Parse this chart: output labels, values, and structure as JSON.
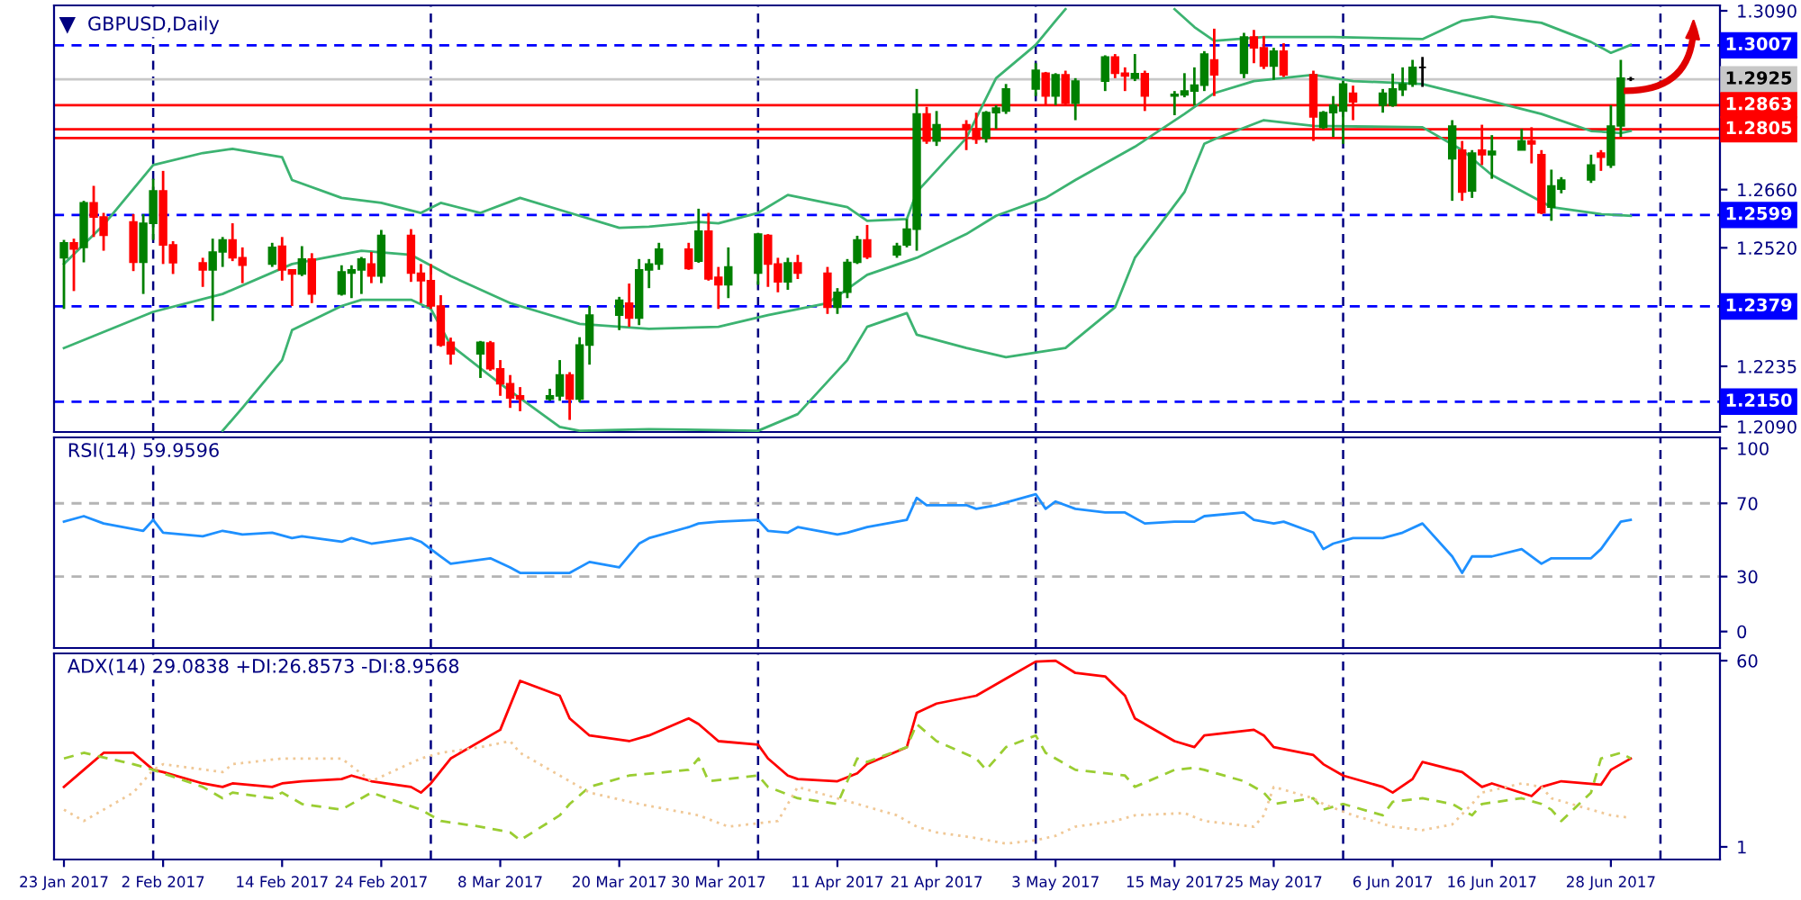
{
  "chart_data": [
    {
      "type": "candlestick",
      "title": "GBPUSD,Daily",
      "x": [
        "2017-01-23",
        "2017-01-24",
        "2017-01-25",
        "2017-01-26",
        "2017-01-27",
        "2017-01-30",
        "2017-01-31",
        "2017-02-01",
        "2017-02-02",
        "2017-02-03",
        "2017-02-06",
        "2017-02-07",
        "2017-02-08",
        "2017-02-09",
        "2017-02-10",
        "2017-02-13",
        "2017-02-14",
        "2017-02-15",
        "2017-02-16",
        "2017-02-17",
        "2017-02-20",
        "2017-02-21",
        "2017-02-22",
        "2017-02-23",
        "2017-02-24",
        "2017-02-27",
        "2017-02-28",
        "2017-03-01",
        "2017-03-02",
        "2017-03-03",
        "2017-03-06",
        "2017-03-07",
        "2017-03-08",
        "2017-03-09",
        "2017-03-10",
        "2017-03-13",
        "2017-03-14",
        "2017-03-15",
        "2017-03-16",
        "2017-03-17",
        "2017-03-20",
        "2017-03-21",
        "2017-03-22",
        "2017-03-23",
        "2017-03-24",
        "2017-03-27",
        "2017-03-28",
        "2017-03-29",
        "2017-03-30",
        "2017-03-31",
        "2017-04-03",
        "2017-04-04",
        "2017-04-05",
        "2017-04-06",
        "2017-04-07",
        "2017-04-10",
        "2017-04-11",
        "2017-04-12",
        "2017-04-13",
        "2017-04-14",
        "2017-04-17",
        "2017-04-18",
        "2017-04-19",
        "2017-04-20",
        "2017-04-21",
        "2017-04-24",
        "2017-04-25",
        "2017-04-26",
        "2017-04-27",
        "2017-04-28",
        "2017-05-01",
        "2017-05-02",
        "2017-05-03",
        "2017-05-04",
        "2017-05-05",
        "2017-05-08",
        "2017-05-09",
        "2017-05-10",
        "2017-05-11",
        "2017-05-12",
        "2017-05-15",
        "2017-05-16",
        "2017-05-17",
        "2017-05-18",
        "2017-05-19",
        "2017-05-22",
        "2017-05-23",
        "2017-05-24",
        "2017-05-25",
        "2017-05-26",
        "2017-05-29",
        "2017-05-30",
        "2017-05-31",
        "2017-06-01",
        "2017-06-02",
        "2017-06-05",
        "2017-06-06",
        "2017-06-07",
        "2017-06-08",
        "2017-06-09",
        "2017-06-12",
        "2017-06-13",
        "2017-06-14",
        "2017-06-15",
        "2017-06-16",
        "2017-06-19",
        "2017-06-20",
        "2017-06-21",
        "2017-06-22",
        "2017-06-23",
        "2017-06-26",
        "2017-06-27",
        "2017-06-28",
        "2017-06-29",
        "2017-06-30"
      ],
      "ohlc": [
        [
          1.2496,
          1.2539,
          1.2373,
          1.2532
        ],
        [
          1.2532,
          1.2542,
          1.2416,
          1.2517
        ],
        [
          1.2521,
          1.2633,
          1.2485,
          1.2628
        ],
        [
          1.2628,
          1.2669,
          1.2546,
          1.2594
        ],
        [
          1.2594,
          1.2604,
          1.2513,
          1.255
        ],
        [
          1.2582,
          1.2601,
          1.2464,
          1.2485
        ],
        [
          1.2485,
          1.2601,
          1.2409,
          1.2579
        ],
        [
          1.2579,
          1.2686,
          1.2539,
          1.2657
        ],
        [
          1.2657,
          1.2705,
          1.2481,
          1.2527
        ],
        [
          1.2527,
          1.2536,
          1.2457,
          1.2484
        ],
        [
          1.2484,
          1.2496,
          1.2426,
          1.2467
        ],
        [
          1.2467,
          1.2542,
          1.2344,
          1.251
        ],
        [
          1.251,
          1.2546,
          1.2474,
          1.2539
        ],
        [
          1.2539,
          1.2579,
          1.2488,
          1.2496
        ],
        [
          1.2496,
          1.2521,
          1.2435,
          1.2478
        ],
        [
          1.2481,
          1.2532,
          1.2474,
          1.2521
        ],
        [
          1.2524,
          1.2546,
          1.2441,
          1.2467
        ],
        [
          1.2467,
          1.2467,
          1.238,
          1.2457
        ],
        [
          1.2457,
          1.2524,
          1.2452,
          1.2493
        ],
        [
          1.2493,
          1.2507,
          1.2387,
          1.2409
        ],
        [
          1.2409,
          1.2478,
          1.2405,
          1.2462
        ],
        [
          1.2459,
          1.2478,
          1.2399,
          1.2467
        ],
        [
          1.2467,
          1.2498,
          1.2409,
          1.2493
        ],
        [
          1.2481,
          1.251,
          1.2435,
          1.2452
        ],
        [
          1.2452,
          1.2563,
          1.2435,
          1.255
        ],
        [
          1.255,
          1.2565,
          1.2438,
          1.2459
        ],
        [
          1.2459,
          1.2481,
          1.2387,
          1.2441
        ],
        [
          1.2441,
          1.2481,
          1.2373,
          1.238
        ],
        [
          1.238,
          1.2406,
          1.2282,
          1.2286
        ],
        [
          1.2293,
          1.2304,
          1.2239,
          1.2265
        ],
        [
          1.2265,
          1.2296,
          1.2207,
          1.2293
        ],
        [
          1.2291,
          1.2296,
          1.2224,
          1.2229
        ],
        [
          1.2229,
          1.225,
          1.2164,
          1.2193
        ],
        [
          1.2193,
          1.2214,
          1.2135,
          1.2159
        ],
        [
          1.2164,
          1.2185,
          1.2127,
          1.2156
        ],
        [
          1.2156,
          1.2181,
          1.2152,
          1.2164
        ],
        [
          1.2164,
          1.225,
          1.2152,
          1.2214
        ],
        [
          1.2214,
          1.2221,
          1.2106,
          1.2156
        ],
        [
          1.2156,
          1.2305,
          1.2149,
          1.2286
        ],
        [
          1.2286,
          1.238,
          1.2239,
          1.2358
        ],
        [
          1.2358,
          1.2402,
          1.2322,
          1.2394
        ],
        [
          1.2387,
          1.2434,
          1.233,
          1.2351
        ],
        [
          1.2351,
          1.2493,
          1.2334,
          1.2467
        ],
        [
          1.2467,
          1.2493,
          1.2423,
          1.2481
        ],
        [
          1.2481,
          1.2532,
          1.2467,
          1.2517
        ],
        [
          1.2517,
          1.2532,
          1.2467,
          1.247
        ],
        [
          1.2488,
          1.2614,
          1.2484,
          1.256
        ],
        [
          1.256,
          1.2604,
          1.2441,
          1.2445
        ],
        [
          1.2449,
          1.2474,
          1.2373,
          1.2431
        ],
        [
          1.2431,
          1.2521,
          1.2399,
          1.2474
        ],
        [
          1.2459,
          1.2556,
          1.2431,
          1.2553
        ],
        [
          1.255,
          1.2553,
          1.2426,
          1.2481
        ],
        [
          1.2481,
          1.2496,
          1.2413,
          1.2438
        ],
        [
          1.2438,
          1.2496,
          1.2419,
          1.2484
        ],
        [
          1.2484,
          1.2503,
          1.2445,
          1.2459
        ],
        [
          1.2459,
          1.2474,
          1.2361,
          1.2377
        ],
        [
          1.2377,
          1.2423,
          1.2361,
          1.2413
        ],
        [
          1.2413,
          1.2493,
          1.2399,
          1.2485
        ],
        [
          1.2485,
          1.2549,
          1.2481,
          1.2539
        ],
        [
          1.2539,
          1.2575,
          1.2493,
          1.2498
        ],
        [
          1.2503,
          1.2532,
          1.2496,
          1.2524
        ],
        [
          1.2527,
          1.2589,
          1.2521,
          1.2565
        ],
        [
          1.2565,
          1.2902,
          1.2513,
          1.2842
        ],
        [
          1.2842,
          1.2859,
          1.277,
          1.2777
        ],
        [
          1.2777,
          1.2849,
          1.2765,
          1.2816
        ],
        [
          1.2816,
          1.2827,
          1.2755,
          1.2806
        ],
        [
          1.2806,
          1.2845,
          1.277,
          1.2781
        ],
        [
          1.2784,
          1.2849,
          1.2773,
          1.2845
        ],
        [
          1.2845,
          1.2863,
          1.2806,
          1.2856
        ],
        [
          1.2849,
          1.2914,
          1.2842,
          1.2902
        ],
        [
          1.2902,
          1.2964,
          1.2885,
          1.2947
        ],
        [
          1.294,
          1.2943,
          1.2863,
          1.2885
        ],
        [
          1.2885,
          1.294,
          1.2863,
          1.2936
        ],
        [
          1.2936,
          1.2946,
          1.2863,
          1.2868
        ],
        [
          1.2868,
          1.2928,
          1.2827,
          1.2921
        ],
        [
          1.2921,
          1.2983,
          1.2897,
          1.2979
        ],
        [
          1.2979,
          1.2986,
          1.2928,
          1.294
        ],
        [
          1.294,
          1.2954,
          1.2897,
          1.2933
        ],
        [
          1.2928,
          1.2986,
          1.2921,
          1.2939
        ],
        [
          1.2939,
          1.2946,
          1.2849,
          1.2885
        ],
        [
          1.2885,
          1.2897,
          1.2839,
          1.2889
        ],
        [
          1.2888,
          1.294,
          1.2882,
          1.2897
        ],
        [
          1.2897,
          1.2954,
          1.2863,
          1.2911
        ],
        [
          1.2911,
          1.2993,
          1.2897,
          1.2986
        ],
        [
          1.2972,
          1.3047,
          1.2885,
          1.2936
        ],
        [
          1.294,
          1.3037,
          1.2928,
          1.3027
        ],
        [
          1.3027,
          1.3044,
          1.2964,
          1.3001
        ],
        [
          1.3001,
          1.3029,
          1.295,
          1.2957
        ],
        [
          1.2957,
          1.3001,
          1.2924,
          1.2993
        ],
        [
          1.2993,
          1.3012,
          1.2931,
          1.2936
        ],
        [
          1.2936,
          1.2946,
          1.2777,
          1.2835
        ],
        [
          1.281,
          1.2849,
          1.2806,
          1.2845
        ],
        [
          1.2845,
          1.2885,
          1.2787,
          1.2863
        ],
        [
          1.2849,
          1.2921,
          1.277,
          1.2914
        ],
        [
          1.2892,
          1.291,
          1.2827,
          1.2871
        ],
        [
          1.2863,
          1.2902,
          1.2845,
          1.2892
        ],
        [
          1.2863,
          1.2939,
          1.2859,
          1.2902
        ],
        [
          1.29,
          1.2954,
          1.2885,
          1.2914
        ],
        [
          1.2914,
          1.2972,
          1.2907,
          1.2954
        ],
        [
          1.2954,
          1.2979,
          1.2907,
          1.2954
        ],
        [
          1.2734,
          1.2827,
          1.2633,
          1.2813
        ],
        [
          1.2755,
          1.2777,
          1.2633,
          1.2654
        ],
        [
          1.2657,
          1.2755,
          1.264,
          1.2748
        ],
        [
          1.2755,
          1.2816,
          1.2719,
          1.2744
        ],
        [
          1.2744,
          1.2791,
          1.2686,
          1.2752
        ],
        [
          1.2755,
          1.2806,
          1.2755,
          1.2777
        ],
        [
          1.2777,
          1.281,
          1.2723,
          1.277
        ],
        [
          1.2744,
          1.2755,
          1.2601,
          1.2604
        ],
        [
          1.2618,
          1.2708,
          1.2585,
          1.2669
        ],
        [
          1.2661,
          1.269,
          1.2651,
          1.2683
        ],
        [
          1.2683,
          1.2744,
          1.2676,
          1.2719
        ],
        [
          1.2748,
          1.2755,
          1.2705,
          1.2738
        ],
        [
          1.2719,
          1.2863,
          1.2712,
          1.2813
        ],
        [
          1.2813,
          1.2972,
          1.2787,
          1.2928
        ],
        [
          1.2926,
          1.2931,
          1.2921,
          1.2926
        ]
      ],
      "colors": [
        "#008000",
        "#ff0000",
        "#008000",
        "#ff0000",
        "#ff0000",
        "#ff0000",
        "#008000",
        "#008000",
        "#ff0000",
        "#ff0000",
        "#ff0000",
        "#008000",
        "#008000",
        "#ff0000",
        "#ff0000",
        "#008000",
        "#ff0000",
        "#ff0000",
        "#008000",
        "#ff0000",
        "#008000",
        "#008000",
        "#008000",
        "#ff0000",
        "#008000",
        "#ff0000",
        "#ff0000",
        "#ff0000",
        "#ff0000",
        "#ff0000",
        "#008000",
        "#ff0000",
        "#ff0000",
        "#ff0000",
        "#ff0000",
        "#008000",
        "#008000",
        "#ff0000",
        "#008000",
        "#008000",
        "#008000",
        "#ff0000",
        "#008000",
        "#008000",
        "#008000",
        "#ff0000",
        "#008000",
        "#ff0000",
        "#ff0000",
        "#008000",
        "#008000",
        "#ff0000",
        "#ff0000",
        "#008000",
        "#ff0000",
        "#ff0000",
        "#008000",
        "#008000",
        "#008000",
        "#ff0000",
        "#008000",
        "#008000",
        "#008000",
        "#ff0000",
        "#008000",
        "#ff0000",
        "#ff0000",
        "#008000",
        "#008000",
        "#008000",
        "#008000",
        "#ff0000",
        "#008000",
        "#ff0000",
        "#008000",
        "#008000",
        "#ff0000",
        "#ff0000",
        "#008000",
        "#ff0000",
        "#008000",
        "#008000",
        "#008000",
        "#008000",
        "#ff0000",
        "#008000",
        "#ff0000",
        "#ff0000",
        "#008000",
        "#ff0000",
        "#ff0000",
        "#008000",
        "#008000",
        "#008000",
        "#ff0000",
        "#008000",
        "#008000",
        "#008000",
        "#008000",
        "#000000",
        "#008000",
        "#ff0000",
        "#008000",
        "#ff0000",
        "#008000",
        "#008000",
        "#ff0000",
        "#ff0000",
        "#008000",
        "#008000",
        "#008000",
        "#ff0000",
        "#008000",
        "#008000",
        "#000000"
      ],
      "series": [
        {
          "type": "line",
          "color": "#3cb371",
          "line_style": "solid",
          "x": [
            "2017-01-23",
            "2017-01-27",
            "2017-02-01",
            "2017-02-06",
            "2017-02-09",
            "2017-02-14",
            "2017-02-15",
            "2017-02-20",
            "2017-02-24",
            "2017-02-28",
            "2017-03-02",
            "2017-03-06",
            "2017-03-10",
            "2017-03-15",
            "2017-03-20",
            "2017-03-23",
            "2017-03-28",
            "2017-03-30",
            "2017-04-03",
            "2017-04-06",
            "2017-04-12",
            "2017-04-14",
            "2017-04-18",
            "2017-04-19",
            "2017-04-24",
            "2017-04-27",
            "2017-05-01",
            "2017-05-03",
            "2017-05-04",
            "2017-05-09",
            "2017-05-15",
            "2017-05-17",
            "2017-05-19",
            "2017-05-24",
            "2017-05-31",
            "2017-06-09",
            "2017-06-13",
            "2017-06-16",
            "2017-06-21",
            "2017-06-26",
            "2017-06-28",
            "2017-06-30"
          ],
          "values": [
            1.2481,
            1.2575,
            1.2719,
            1.2748,
            1.2758,
            1.2738,
            1.2683,
            1.264,
            1.2628,
            1.2604,
            1.2628,
            1.2604,
            1.264,
            1.2604,
            1.2568,
            1.2571,
            1.2582,
            1.2579,
            1.2604,
            1.2647,
            1.2618,
            1.2585,
            1.2589,
            1.2654,
            1.2784,
            1.2928,
            1.3008,
            1.3066,
            1.3094,
            null,
            1.3094,
            1.3051,
            1.3018,
            1.3027,
            1.3027,
            1.3022,
            1.3066,
            1.3076,
            1.3061,
            1.3015,
            1.2989,
            1.3008
          ]
        },
        {
          "type": "line",
          "color": "#3cb371",
          "line_style": "solid",
          "x": [
            "2017-01-23",
            "2017-02-01",
            "2017-02-08",
            "2017-02-15",
            "2017-02-22",
            "2017-02-27",
            "2017-03-03",
            "2017-03-09",
            "2017-03-16",
            "2017-03-23",
            "2017-03-30",
            "2017-04-04",
            "2017-04-10",
            "2017-04-14",
            "2017-04-19",
            "2017-04-24",
            "2017-04-27",
            "2017-05-02",
            "2017-05-05",
            "2017-05-11",
            "2017-05-16",
            "2017-05-19",
            "2017-05-23",
            "2017-05-29",
            "2017-06-02",
            "2017-06-09",
            "2017-06-15",
            "2017-06-21",
            "2017-06-26",
            "2017-06-29",
            "2017-06-30"
          ],
          "values": [
            1.2279,
            1.2366,
            1.2409,
            1.2481,
            1.2513,
            1.2503,
            1.2452,
            1.2387,
            1.2337,
            1.2325,
            1.233,
            1.2358,
            1.2387,
            1.2455,
            1.2496,
            1.2553,
            1.2597,
            1.264,
            1.2683,
            1.2763,
            1.2842,
            1.2892,
            1.2921,
            1.2936,
            1.2921,
            1.2914,
            1.2878,
            1.2842,
            1.2801,
            1.2796,
            1.2801
          ]
        },
        {
          "type": "line",
          "color": "#3cb371",
          "line_style": "solid",
          "x": [
            "2017-02-08",
            "2017-02-10",
            "2017-02-14",
            "2017-02-15",
            "2017-02-20",
            "2017-02-22",
            "2017-02-27",
            "2017-03-01",
            "2017-03-03",
            "2017-03-08",
            "2017-03-14",
            "2017-03-16",
            "2017-03-23",
            "2017-04-03",
            "2017-04-07",
            "2017-04-12",
            "2017-04-14",
            "2017-04-18",
            "2017-04-19",
            "2017-04-24",
            "2017-04-28",
            "2017-05-04",
            "2017-05-09",
            "2017-05-11",
            "2017-05-16",
            "2017-05-18",
            "2017-05-19",
            "2017-05-24",
            "2017-05-29",
            "2017-06-09",
            "2017-06-13",
            "2017-06-16",
            "2017-06-22",
            "2017-06-27",
            "2017-06-30"
          ],
          "values": [
            1.208,
            1.2135,
            1.225,
            1.2322,
            1.238,
            1.2395,
            1.2395,
            1.2373,
            1.2286,
            1.2193,
            1.2089,
            1.208,
            1.2084,
            1.208,
            1.212,
            1.225,
            1.233,
            1.2363,
            1.2311,
            1.2279,
            1.2257,
            1.2279,
            1.2377,
            1.2496,
            1.2654,
            1.277,
            1.2781,
            1.2827,
            1.2813,
            1.281,
            1.2755,
            1.2695,
            1.2618,
            1.2601,
            1.2597
          ]
        }
      ],
      "xlim": [
        "2017-01-22",
        "2017-07-09"
      ],
      "ylim": [
        1.2077,
        1.3103
      ],
      "yticks": [
        {
          "value": 1.309,
          "label": "1.3090"
        },
        {
          "value": 1.2945,
          "label": null
        },
        {
          "value": 1.266,
          "label": "1.2660"
        },
        {
          "value": 1.252,
          "label": "1.2520"
        },
        1.2235,
        {
          "value": 1.209,
          "label": "1.2090"
        }
      ],
      "ref_lines": [
        {
          "axis": "y",
          "value": 1.3007,
          "label": "1.3007",
          "color": "#0000ff",
          "line_style": "dashed"
        },
        {
          "axis": "y",
          "value": 1.2925,
          "label": "1.2925",
          "color": "#c8c8c8",
          "line_style": "solid"
        },
        {
          "axis": "y",
          "value": 1.2863,
          "label": "1.2863",
          "color": "#ff0000",
          "line_style": "solid"
        },
        {
          "axis": "y",
          "value": 1.2805,
          "label": "1.2805",
          "color": "#ff0000",
          "line_style": "solid"
        },
        {
          "axis": "y",
          "value": 1.2784,
          "label": null,
          "color": "#ff0000",
          "line_style": "solid"
        },
        {
          "axis": "y",
          "value": 1.2599,
          "label": "1.2599",
          "color": "#0000ff",
          "line_style": "dashed"
        },
        {
          "axis": "y",
          "value": 1.2379,
          "label": "1.2379",
          "color": "#0000ff",
          "line_style": "dashed"
        },
        {
          "axis": "y",
          "value": 1.215,
          "label": "1.2150",
          "color": "#0000ff",
          "line_style": "dashed"
        },
        {
          "axis": "x",
          "value": "2017-02-01",
          "color": "#000080",
          "line_style": "dashed"
        },
        {
          "axis": "x",
          "value": "2017-03-01",
          "color": "#000080",
          "line_style": "dashed"
        },
        {
          "axis": "x",
          "value": "2017-04-03",
          "color": "#000080",
          "line_style": "dashed"
        },
        {
          "axis": "x",
          "value": "2017-05-01",
          "color": "#000080",
          "line_style": "dashed"
        },
        {
          "axis": "x",
          "value": "2017-06-01",
          "color": "#000080",
          "line_style": "dashed"
        },
        {
          "axis": "x",
          "value": "2017-07-03",
          "color": "#000080",
          "line_style": "dashed"
        }
      ],
      "tick_labels": "y"
    },
    {
      "type": "line",
      "title": "RSI(14) 59.9596",
      "series": [
        {
          "color": "#1e90ff",
          "line_style": "solid",
          "x": [
            "2017-01-23",
            "2017-01-25",
            "2017-01-27",
            "2017-01-31",
            "2017-02-01",
            "2017-02-02",
            "2017-02-06",
            "2017-02-08",
            "2017-02-10",
            "2017-02-13",
            "2017-02-15",
            "2017-02-16",
            "2017-02-20",
            "2017-02-21",
            "2017-02-23",
            "2017-02-27",
            "2017-02-28",
            "2017-03-02",
            "2017-03-03",
            "2017-03-07",
            "2017-03-09",
            "2017-03-10",
            "2017-03-15",
            "2017-03-17",
            "2017-03-20",
            "2017-03-22",
            "2017-03-23",
            "2017-03-27",
            "2017-03-28",
            "2017-03-30",
            "2017-04-03",
            "2017-04-04",
            "2017-04-06",
            "2017-04-07",
            "2017-04-11",
            "2017-04-12",
            "2017-04-14",
            "2017-04-18",
            "2017-04-19",
            "2017-04-20",
            "2017-04-24",
            "2017-04-25",
            "2017-04-27",
            "2017-05-01",
            "2017-05-02",
            "2017-05-03",
            "2017-05-05",
            "2017-05-08",
            "2017-05-10",
            "2017-05-12",
            "2017-05-15",
            "2017-05-17",
            "2017-05-18",
            "2017-05-22",
            "2017-05-23",
            "2017-05-25",
            "2017-05-26",
            "2017-05-29",
            "2017-05-30",
            "2017-05-31",
            "2017-06-02",
            "2017-06-05",
            "2017-06-07",
            "2017-06-09",
            "2017-06-12",
            "2017-06-13",
            "2017-06-14",
            "2017-06-16",
            "2017-06-19",
            "2017-06-21",
            "2017-06-22",
            "2017-06-26",
            "2017-06-27",
            "2017-06-29",
            "2017-06-30"
          ],
          "values": [
            60,
            63,
            59,
            55,
            61,
            54,
            52,
            55,
            53,
            54,
            51,
            52,
            49,
            51,
            48,
            51,
            49,
            41,
            37,
            40,
            35,
            32,
            32,
            38,
            35,
            48,
            51,
            57,
            59,
            60,
            61,
            55,
            54,
            57,
            53,
            54,
            57,
            61,
            73,
            69,
            69,
            67,
            69,
            75,
            67,
            71,
            67,
            65,
            65,
            59,
            60,
            60,
            63,
            65,
            61,
            59,
            60,
            54,
            45,
            48,
            51,
            51,
            54,
            59,
            41,
            32,
            41,
            41,
            45,
            37,
            40,
            40,
            45,
            60,
            61
          ]
        }
      ],
      "xlim": [
        "2017-01-22",
        "2017-07-09"
      ],
      "ylim": [
        -9,
        106
      ],
      "yticks": [
        0,
        30,
        70,
        100
      ],
      "ref_lines": [
        {
          "axis": "y",
          "value": 70,
          "color": "#b4b4b4",
          "line_style": "dashed"
        },
        {
          "axis": "y",
          "value": 30,
          "color": "#b4b4b4",
          "line_style": "dashed"
        },
        {
          "axis": "x",
          "value": "2017-02-01",
          "color": "#000080",
          "line_style": "dashed"
        },
        {
          "axis": "x",
          "value": "2017-03-01",
          "color": "#000080",
          "line_style": "dashed"
        },
        {
          "axis": "x",
          "value": "2017-04-03",
          "color": "#000080",
          "line_style": "dashed"
        },
        {
          "axis": "x",
          "value": "2017-05-01",
          "color": "#000080",
          "line_style": "dashed"
        },
        {
          "axis": "x",
          "value": "2017-06-01",
          "color": "#000080",
          "line_style": "dashed"
        },
        {
          "axis": "x",
          "value": "2017-07-03",
          "color": "#000080",
          "line_style": "dashed"
        }
      ],
      "tick_labels": "y"
    },
    {
      "type": "line",
      "title": "ADX(14) 29.0838 +DI:26.8573 -DI:8.9568",
      "series": [
        {
          "color": "#ff0000",
          "line_style": "solid",
          "x": [
            "2017-01-23",
            "2017-01-25",
            "2017-01-27",
            "2017-01-30",
            "2017-02-01",
            "2017-02-02",
            "2017-02-06",
            "2017-02-08",
            "2017-02-09",
            "2017-02-13",
            "2017-02-14",
            "2017-02-16",
            "2017-02-20",
            "2017-02-21",
            "2017-02-23",
            "2017-02-27",
            "2017-02-28",
            "2017-03-01",
            "2017-03-03",
            "2017-03-08",
            "2017-03-10",
            "2017-03-14",
            "2017-03-15",
            "2017-03-17",
            "2017-03-21",
            "2017-03-23",
            "2017-03-27",
            "2017-03-28",
            "2017-03-30",
            "2017-04-03",
            "2017-04-04",
            "2017-04-06",
            "2017-04-07",
            "2017-04-11",
            "2017-04-13",
            "2017-04-14",
            "2017-04-18",
            "2017-04-19",
            "2017-04-21",
            "2017-04-25",
            "2017-04-28",
            "2017-05-01",
            "2017-05-03",
            "2017-05-05",
            "2017-05-08",
            "2017-05-10",
            "2017-05-11",
            "2017-05-15",
            "2017-05-17",
            "2017-05-18",
            "2017-05-23",
            "2017-05-24",
            "2017-05-25",
            "2017-05-29",
            "2017-05-30",
            "2017-06-01",
            "2017-06-05",
            "2017-06-06",
            "2017-06-08",
            "2017-06-09",
            "2017-06-13",
            "2017-06-15",
            "2017-06-16",
            "2017-06-20",
            "2017-06-21",
            "2017-06-23",
            "2017-06-27",
            "2017-06-28",
            "2017-06-30"
          ],
          "values": [
            20.0,
            25.4,
            30.8,
            30.8,
            25.4,
            24.7,
            21.1,
            20.0,
            21.1,
            20.0,
            21.1,
            21.8,
            22.5,
            23.6,
            21.8,
            20.0,
            18.2,
            21.1,
            29.0,
            38.1,
            53.6,
            48.9,
            41.7,
            36.3,
            34.5,
            36.3,
            41.7,
            39.9,
            34.5,
            33.4,
            29.0,
            23.6,
            22.5,
            21.8,
            24.3,
            27.2,
            32.6,
            43.5,
            46.4,
            48.9,
            54.3,
            59.7,
            60.0,
            56.1,
            55.0,
            48.9,
            41.7,
            34.5,
            32.6,
            36.3,
            38.1,
            36.3,
            32.6,
            30.1,
            27.2,
            23.6,
            20.0,
            18.2,
            22.5,
            27.9,
            24.7,
            20.0,
            21.1,
            17.1,
            20.0,
            21.8,
            20.7,
            25.4,
            29.0
          ]
        },
        {
          "color": "#9acd32",
          "line_style": "dashed",
          "x": [
            "2017-01-23",
            "2017-01-25",
            "2017-01-30",
            "2017-02-01",
            "2017-02-06",
            "2017-02-08",
            "2017-02-09",
            "2017-02-13",
            "2017-02-14",
            "2017-02-16",
            "2017-02-20",
            "2017-02-23",
            "2017-02-28",
            "2017-03-02",
            "2017-03-06",
            "2017-03-09",
            "2017-03-10",
            "2017-03-14",
            "2017-03-15",
            "2017-03-17",
            "2017-03-21",
            "2017-03-27",
            "2017-03-28",
            "2017-03-29",
            "2017-04-03",
            "2017-04-04",
            "2017-04-07",
            "2017-04-11",
            "2017-04-13",
            "2017-04-14",
            "2017-04-18",
            "2017-04-19",
            "2017-04-21",
            "2017-04-25",
            "2017-04-26",
            "2017-04-28",
            "2017-05-01",
            "2017-05-02",
            "2017-05-05",
            "2017-05-10",
            "2017-05-11",
            "2017-05-15",
            "2017-05-17",
            "2017-05-18",
            "2017-05-22",
            "2017-05-24",
            "2017-05-25",
            "2017-05-29",
            "2017-05-30",
            "2017-06-01",
            "2017-06-05",
            "2017-06-06",
            "2017-06-09",
            "2017-06-12",
            "2017-06-14",
            "2017-06-15",
            "2017-06-19",
            "2017-06-21",
            "2017-06-22",
            "2017-06-23",
            "2017-06-26",
            "2017-06-27",
            "2017-06-29",
            "2017-06-30"
          ],
          "values": [
            29.0,
            30.8,
            27.2,
            25.4,
            20.0,
            16.4,
            18.2,
            16.4,
            18.2,
            14.6,
            12.8,
            18.2,
            12.8,
            9.2,
            7.4,
            5.6,
            3.1,
            11.0,
            14.6,
            20.0,
            23.6,
            25.4,
            29.0,
            21.8,
            23.6,
            20.0,
            16.4,
            14.6,
            29.0,
            27.9,
            32.6,
            39.9,
            34.5,
            29.0,
            25.4,
            32.6,
            36.3,
            30.8,
            25.4,
            23.6,
            20.0,
            25.4,
            26.1,
            25.4,
            21.8,
            18.2,
            14.6,
            16.4,
            12.8,
            14.6,
            11.0,
            15.3,
            16.4,
            14.6,
            11.0,
            14.6,
            16.4,
            14.6,
            12.8,
            9.2,
            18.2,
            29.0,
            30.8,
            29.0
          ]
        },
        {
          "color": "#f0c896",
          "line_style": "dotted",
          "x": [
            "2017-01-23",
            "2017-01-25",
            "2017-01-30",
            "2017-02-01",
            "2017-02-02",
            "2017-02-08",
            "2017-02-09",
            "2017-02-14",
            "2017-02-20",
            "2017-02-23",
            "2017-02-28",
            "2017-03-02",
            "2017-03-06",
            "2017-03-09",
            "2017-03-10",
            "2017-03-15",
            "2017-03-17",
            "2017-03-22",
            "2017-03-28",
            "2017-03-31",
            "2017-04-05",
            "2017-04-07",
            "2017-04-11",
            "2017-04-13",
            "2017-04-17",
            "2017-04-19",
            "2017-04-21",
            "2017-04-25",
            "2017-04-28",
            "2017-05-01",
            "2017-05-03",
            "2017-05-05",
            "2017-05-09",
            "2017-05-11",
            "2017-05-16",
            "2017-05-18",
            "2017-05-23",
            "2017-05-24",
            "2017-05-25",
            "2017-05-29",
            "2017-05-30",
            "2017-06-02",
            "2017-06-06",
            "2017-06-09",
            "2017-06-12",
            "2017-06-14",
            "2017-06-15",
            "2017-06-19",
            "2017-06-21",
            "2017-06-22",
            "2017-06-26",
            "2017-06-28",
            "2017-06-30"
          ],
          "values": [
            12.8,
            9.2,
            18.2,
            25.4,
            27.2,
            24.7,
            27.2,
            29.0,
            29.0,
            21.8,
            29.0,
            30.8,
            32.6,
            34.5,
            30.8,
            21.8,
            18.2,
            14.6,
            11.0,
            7.4,
            9.2,
            20.0,
            16.4,
            14.6,
            11.0,
            7.4,
            5.6,
            3.8,
            2.0,
            3.1,
            4.5,
            7.4,
            9.2,
            11.0,
            11.7,
            9.2,
            7.4,
            11.0,
            20.0,
            16.4,
            14.6,
            11.0,
            7.4,
            6.3,
            8.1,
            14.6,
            18.2,
            21.1,
            20.0,
            16.4,
            12.8,
            11.0,
            10.2
          ]
        }
      ],
      "xlim": [
        "2017-01-22",
        "2017-07-09"
      ],
      "ylim": [
        -3,
        62.3
      ],
      "yticks": [
        1,
        60
      ],
      "xticks": [
        {
          "value": "2017-01-23",
          "label": "23 Jan 2017"
        },
        {
          "value": "2017-02-02",
          "label": "2 Feb 2017"
        },
        {
          "value": "2017-02-14",
          "label": "14 Feb 2017"
        },
        {
          "value": "2017-02-24",
          "label": "24 Feb 2017"
        },
        {
          "value": "2017-03-08",
          "label": "8 Mar 2017"
        },
        {
          "value": "2017-03-20",
          "label": "20 Mar 2017"
        },
        {
          "value": "2017-03-30",
          "label": "30 Mar 2017"
        },
        {
          "value": "2017-04-11",
          "label": "11 Apr 2017"
        },
        {
          "value": "2017-04-21",
          "label": "21 Apr 2017"
        },
        {
          "value": "2017-05-03",
          "label": "3 May 2017"
        },
        {
          "value": "2017-05-15",
          "label": "15 May 2017"
        },
        {
          "value": "2017-05-25",
          "label": "25 May 2017"
        },
        {
          "value": "2017-06-06",
          "label": "6 Jun 2017"
        },
        {
          "value": "2017-06-16",
          "label": "16 Jun 2017"
        },
        {
          "value": "2017-06-28",
          "label": "28 Jun 2017"
        }
      ],
      "ref_lines": [
        {
          "axis": "x",
          "value": "2017-02-01",
          "color": "#000080",
          "line_style": "dashed"
        },
        {
          "axis": "x",
          "value": "2017-03-01",
          "color": "#000080",
          "line_style": "dashed"
        },
        {
          "axis": "x",
          "value": "2017-04-03",
          "color": "#000080",
          "line_style": "dashed"
        },
        {
          "axis": "x",
          "value": "2017-05-01",
          "color": "#000080",
          "line_style": "dashed"
        },
        {
          "axis": "x",
          "value": "2017-06-01",
          "color": "#000080",
          "line_style": "dashed"
        },
        {
          "axis": "x",
          "value": "2017-07-03",
          "color": "#000080",
          "line_style": "dashed"
        }
      ]
    }
  ]
}
